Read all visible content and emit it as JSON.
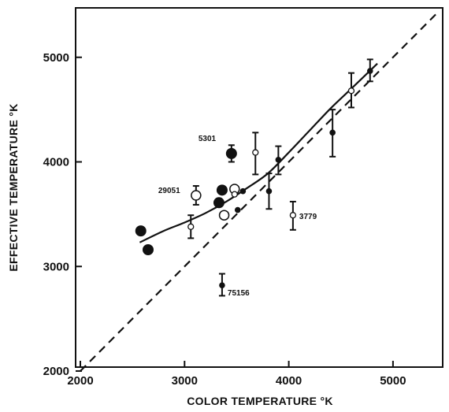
{
  "chart_data": {
    "type": "scatter",
    "title": "",
    "xlabel": "COLOR TEMPERATURE °K",
    "ylabel": "EFFECTIVE TEMPERATURE °K",
    "xlim": [
      2000,
      5500
    ],
    "ylim": [
      2000,
      5500
    ],
    "x_ticks": [
      2000,
      3000,
      4000,
      5000
    ],
    "x_tick_labels": [
      "2000",
      "3000",
      "4000",
      "5000"
    ],
    "y_ticks": [
      2000,
      3000,
      4000,
      5000
    ],
    "y_tick_labels": [
      "2000",
      "3000",
      "4000",
      "5000"
    ],
    "grid": false,
    "legend": "none",
    "reference_line": {
      "style": "dashed",
      "x": [
        2000,
        5430
      ],
      "y": [
        2000,
        5430
      ]
    },
    "fit_curve": {
      "style": "solid",
      "x": [
        2570,
        2800,
        3000,
        3200,
        3400,
        3600,
        3800,
        4000,
        4200,
        4400,
        4600,
        4850
      ],
      "y": [
        3230,
        3340,
        3420,
        3510,
        3620,
        3750,
        3890,
        4090,
        4300,
        4510,
        4700,
        4940
      ]
    },
    "series": [
      {
        "name": "",
        "marker": "large-filled-circle",
        "points": [
          {
            "x": 2580,
            "y": 3340
          },
          {
            "x": 2650,
            "y": 3160
          },
          {
            "x": 3330,
            "y": 3610
          },
          {
            "x": 3360,
            "y": 3730
          },
          {
            "x": 3450,
            "y": 4080,
            "yerr_low": 4000,
            "yerr_high": 4160
          }
        ]
      },
      {
        "name": "",
        "marker": "large-open-circle",
        "points": [
          {
            "x": 3110,
            "y": 3680,
            "yerr_low": 3590,
            "yerr_high": 3770
          },
          {
            "x": 3380,
            "y": 3490
          },
          {
            "x": 3480,
            "y": 3740
          }
        ]
      },
      {
        "name": "",
        "marker": "small-filled-circle",
        "points": [
          {
            "x": 3360,
            "y": 2820,
            "yerr_low": 2720,
            "yerr_high": 2930
          },
          {
            "x": 3510,
            "y": 3540
          },
          {
            "x": 3560,
            "y": 3720
          },
          {
            "x": 3810,
            "y": 3720,
            "yerr_low": 3550,
            "yerr_high": 3890
          },
          {
            "x": 3900,
            "y": 4020,
            "yerr_low": 3880,
            "yerr_high": 4150
          },
          {
            "x": 4420,
            "y": 4280,
            "yerr_low": 4050,
            "yerr_high": 4500
          },
          {
            "x": 4780,
            "y": 4870,
            "yerr_low": 4770,
            "yerr_high": 4980
          }
        ]
      },
      {
        "name": "",
        "marker": "small-open-circle",
        "points": [
          {
            "x": 3060,
            "y": 3380,
            "yerr_low": 3270,
            "yerr_high": 3490
          },
          {
            "x": 3480,
            "y": 3690
          },
          {
            "x": 3680,
            "y": 4090,
            "yerr_low": 3880,
            "yerr_high": 4280
          },
          {
            "x": 4040,
            "y": 3490,
            "yerr_low": 3350,
            "yerr_high": 3620
          },
          {
            "x": 4600,
            "y": 4680,
            "yerr_low": 4520,
            "yerr_high": 4850
          }
        ]
      }
    ],
    "annotations": [
      {
        "text": "5301",
        "x": 3450,
        "y": 4080
      },
      {
        "text": "29051",
        "x": 3110,
        "y": 3680
      },
      {
        "text": "3779",
        "x": 4040,
        "y": 3490
      },
      {
        "text": "75156",
        "x": 3360,
        "y": 2820
      }
    ]
  }
}
